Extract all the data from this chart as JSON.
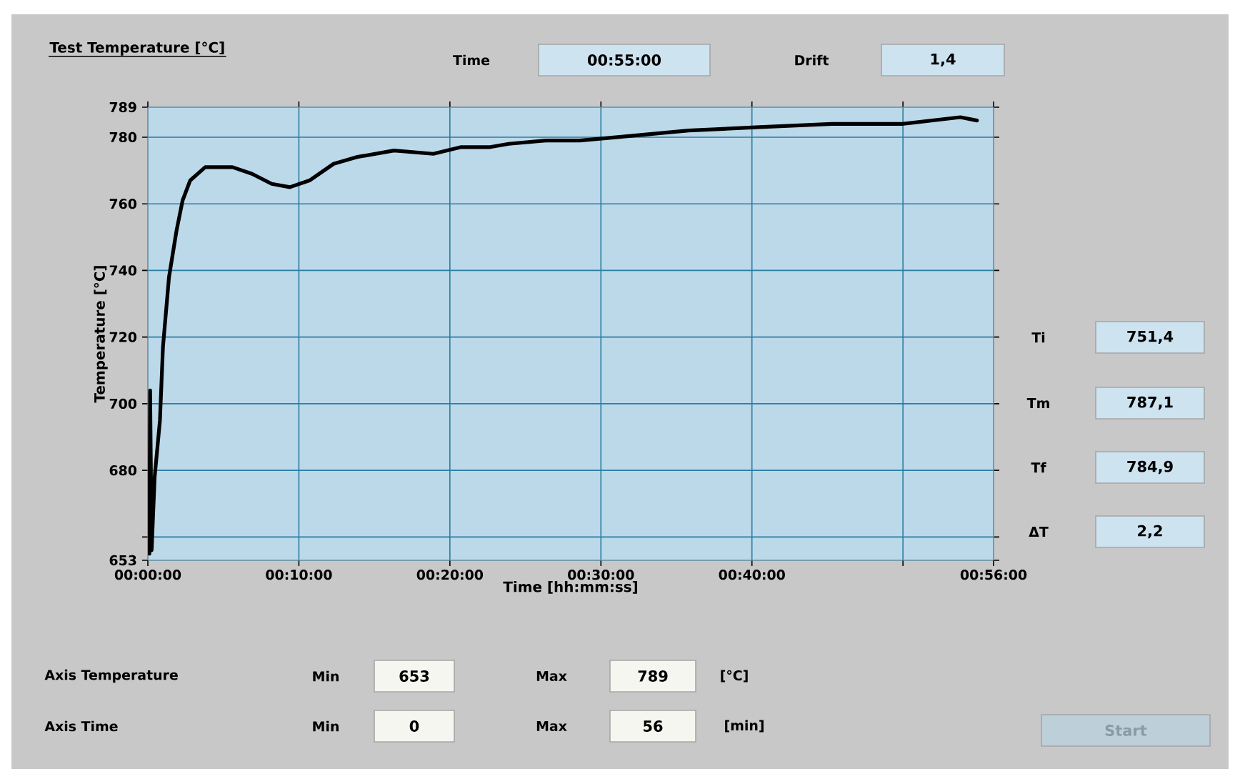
{
  "chart_data": {
    "type": "line",
    "title": "Test Temperature [°C]",
    "xlabel": "Time [hh:mm:ss]",
    "ylabel": "Temperature [°C]",
    "x": [
      0.1,
      0.15,
      0.25,
      0.45,
      0.8,
      1.0,
      1.4,
      1.9,
      2.3,
      2.8,
      3.8,
      5.6,
      6.9,
      8.2,
      9.4,
      10.7,
      12.3,
      13.8,
      16.3,
      18.9,
      20.7,
      22.6,
      23.9,
      26.4,
      28.6,
      31.1,
      35.8,
      40.5,
      45.3,
      50.0,
      53.8,
      54.9
    ],
    "values": [
      655,
      704,
      656,
      678,
      695,
      717,
      738,
      752,
      761,
      767,
      771,
      771,
      769,
      766,
      765,
      767,
      772,
      774,
      776,
      775,
      777,
      777,
      778,
      779,
      779,
      780,
      782,
      783,
      784,
      784,
      786,
      785
    ],
    "color": "#000000",
    "xlim": [
      0,
      56
    ],
    "ylim": [
      653,
      789
    ],
    "xticks": [
      {
        "value": 0,
        "label": "00:00:00"
      },
      {
        "value": 10,
        "label": "00:10:00"
      },
      {
        "value": 20,
        "label": "00:20:00"
      },
      {
        "value": 30,
        "label": "00:30:00"
      },
      {
        "value": 40,
        "label": "00:40:00"
      },
      {
        "value": 50,
        "label": null
      },
      {
        "value": 56,
        "label": "00:56:00"
      }
    ],
    "yticks": [
      653,
      {
        "value": 660,
        "label": null
      },
      680,
      700,
      720,
      740,
      760,
      780,
      789
    ],
    "grid": true,
    "annotations": [
      "Time",
      "00:55:00",
      "Drift",
      "1,4",
      "Ti",
      "751,4",
      "Tm",
      "787,1",
      "Tf",
      "784,9",
      "ΔT",
      "2,2",
      "Axis Temperature",
      "Min",
      "653",
      "Max",
      "789",
      "[°C]",
      "Axis Time",
      "Min",
      "0",
      "Max",
      "56",
      "[min]",
      "Start"
    ]
  }
}
